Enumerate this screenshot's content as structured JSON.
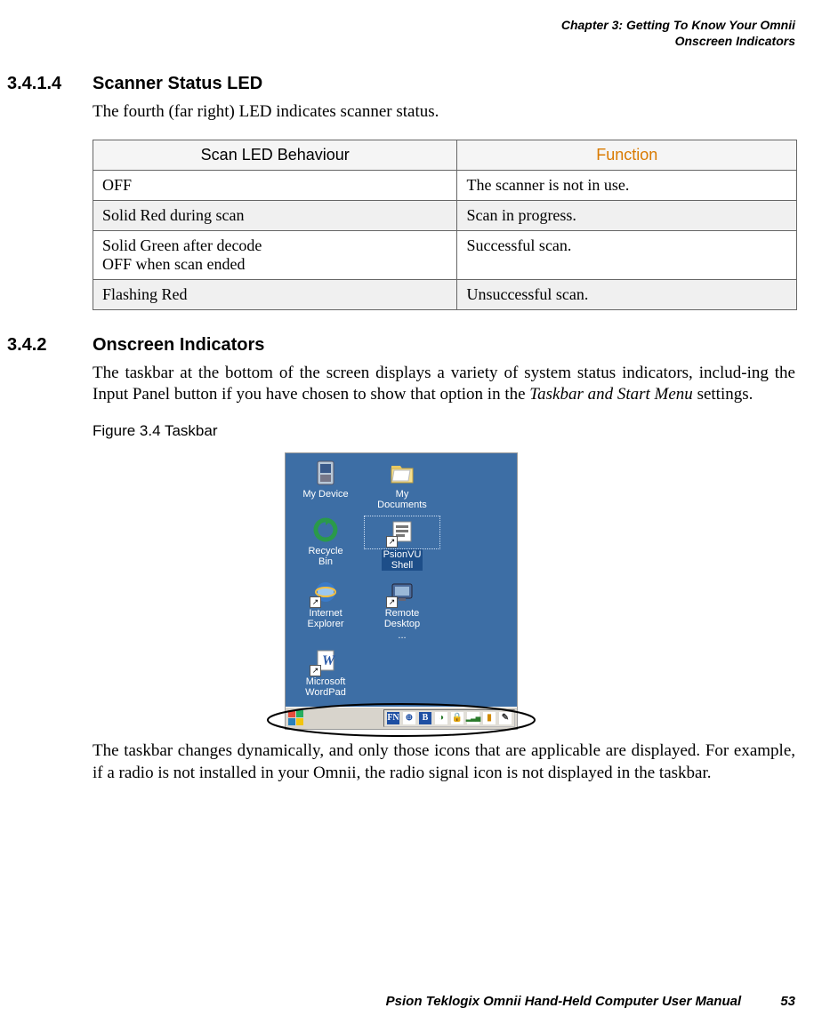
{
  "header": {
    "line1": "Chapter 3: Getting To Know Your Omnii",
    "line2": "Onscreen Indicators"
  },
  "section1": {
    "number": "3.4.1.4",
    "title": "Scanner Status LED",
    "intro": "The fourth (far right) LED indicates scanner status."
  },
  "table": {
    "headers": {
      "col1": "Scan LED Behaviour",
      "col2": "Function"
    },
    "header_colors": {
      "col1": "#000000",
      "col2": "#d97a00"
    },
    "rows": [
      {
        "behaviour": "OFF",
        "function": "The scanner is not in use.",
        "shaded": false
      },
      {
        "behaviour": "Solid Red during scan",
        "function": "Scan in progress.",
        "shaded": true
      },
      {
        "behaviour": "Solid Green after decode\nOFF when scan ended",
        "function": "Successful scan.",
        "shaded": false
      },
      {
        "behaviour": "Flashing Red",
        "function": "Unsuccessful scan.",
        "shaded": true
      }
    ]
  },
  "section2": {
    "number": "3.4.2",
    "title": "Onscreen Indicators",
    "para1_a": "The taskbar at the bottom of the screen displays a variety of system status indicators, includ-",
    "para1_b": "ing the Input Panel button if you have chosen to show that option in the ",
    "para1_italic": "Taskbar and Start Menu",
    "para1_c": " settings.",
    "figure_label": "Figure 3.4  Taskbar",
    "para2": "The taskbar changes dynamically, and only those icons that are applicable are displayed. For example, if a radio is not installed in your Omnii, the radio signal icon is not displayed in the taskbar."
  },
  "desktop": {
    "background": "#3d6ea5",
    "icons": [
      {
        "label": "My Device",
        "type": "device"
      },
      {
        "label": "My Documents",
        "type": "folder"
      },
      {
        "label": "Recycle Bin",
        "type": "recycle"
      },
      {
        "label": "PsionVU Shell",
        "type": "app",
        "selected": true
      },
      {
        "label": "Internet Explorer",
        "type": "ie"
      },
      {
        "label": "Remote Desktop ...",
        "type": "remote"
      },
      {
        "label": "Microsoft WordPad",
        "type": "wordpad"
      }
    ],
    "taskbar": {
      "background": "#d8d4cc",
      "start_colors": [
        "#e74c3c",
        "#27ae60",
        "#2980b9",
        "#f1c40f"
      ],
      "tray_icons": [
        {
          "name": "fn-indicator",
          "bg": "#1e4fa3",
          "glyph": "FN",
          "color": "#ffffff"
        },
        {
          "name": "network-icon",
          "bg": "#ffffff",
          "glyph": "⊕",
          "color": "#1e4fa3"
        },
        {
          "name": "bluetooth-icon",
          "bg": "#1e4fa3",
          "glyph": "B",
          "color": "#ffffff"
        },
        {
          "name": "sync-icon",
          "bg": "#ffffff",
          "glyph": "◑",
          "color": "#2a7a2a"
        },
        {
          "name": "secure-icon",
          "bg": "#ffffff",
          "glyph": "🔒",
          "color": "#555555"
        },
        {
          "name": "signal-icon",
          "bg": "#ffffff",
          "glyph": "▂▃▅",
          "color": "#2a7a2a"
        },
        {
          "name": "battery-icon",
          "bg": "#ffffff",
          "glyph": "▮",
          "color": "#d08a00"
        },
        {
          "name": "input-icon",
          "bg": "#ffffff",
          "glyph": "✎",
          "color": "#333333"
        }
      ]
    }
  },
  "footer": {
    "text": "Psion Teklogix Omnii Hand-Held Computer User Manual",
    "page": "53"
  }
}
